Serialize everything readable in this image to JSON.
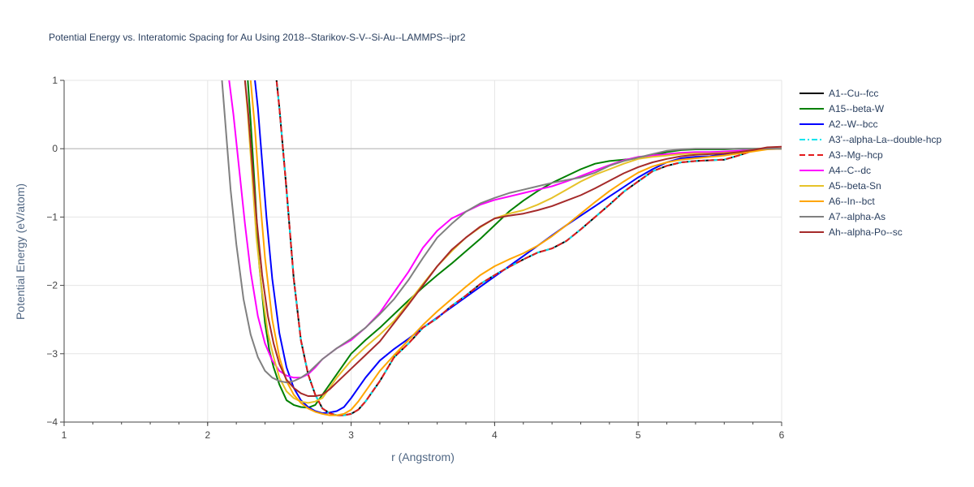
{
  "chart_data": {
    "type": "line",
    "title": "Potential Energy vs. Interatomic Spacing for Au Using 2018--Starikov-S-V--Si-Au--LAMMPS--ipr2",
    "xlabel": "r (Angstrom)",
    "ylabel": "Potential Energy (eV/atom)",
    "xlim": [
      1,
      6
    ],
    "ylim": [
      -4,
      1
    ],
    "xticks": [
      1,
      2,
      3,
      4,
      5,
      6
    ],
    "yticks": [
      1,
      0,
      -1,
      -2,
      -3,
      -4
    ],
    "ytick_labels": [
      "1",
      "0",
      "−1",
      "−2",
      "−3",
      "−4"
    ],
    "grid": true,
    "legend_position": "right",
    "series": [
      {
        "name": "A1--Cu--fcc",
        "color": "#000000",
        "dash": "solid",
        "x": [
          2.45,
          2.48,
          2.5,
          2.55,
          2.6,
          2.65,
          2.7,
          2.75,
          2.8,
          2.85,
          2.9,
          2.95,
          3.0,
          3.05,
          3.1,
          3.2,
          3.3,
          3.4,
          3.5,
          3.6,
          3.7,
          3.8,
          3.9,
          4.0,
          4.1,
          4.2,
          4.3,
          4.4,
          4.5,
          4.6,
          4.7,
          4.8,
          4.9,
          5.0,
          5.1,
          5.2,
          5.3,
          5.4,
          5.5,
          5.6,
          5.7,
          5.8,
          5.9,
          6.0
        ],
        "y": [
          1.5,
          1.0,
          0.6,
          -0.6,
          -1.9,
          -2.8,
          -3.3,
          -3.6,
          -3.8,
          -3.87,
          -3.9,
          -3.9,
          -3.88,
          -3.82,
          -3.7,
          -3.4,
          -3.05,
          -2.85,
          -2.62,
          -2.48,
          -2.3,
          -2.15,
          -1.98,
          -1.85,
          -1.73,
          -1.62,
          -1.52,
          -1.46,
          -1.35,
          -1.18,
          -1.0,
          -0.82,
          -0.63,
          -0.48,
          -0.33,
          -0.25,
          -0.2,
          -0.18,
          -0.17,
          -0.16,
          -0.1,
          -0.03,
          0.0,
          0.0
        ]
      },
      {
        "name": "A15--beta-W",
        "color": "#008000",
        "dash": "solid",
        "x": [
          2.28,
          2.3,
          2.33,
          2.36,
          2.4,
          2.43,
          2.46,
          2.5,
          2.55,
          2.6,
          2.65,
          2.7,
          2.75,
          2.8,
          2.9,
          3.0,
          3.1,
          3.2,
          3.3,
          3.4,
          3.5,
          3.6,
          3.7,
          3.8,
          3.9,
          4.0,
          4.1,
          4.2,
          4.3,
          4.4,
          4.5,
          4.6,
          4.7,
          4.8,
          4.9,
          5.0,
          5.1,
          5.2,
          5.3,
          5.4,
          5.5,
          5.6,
          5.7,
          5.8,
          5.9,
          6.0
        ],
        "y": [
          1.0,
          0.4,
          -0.6,
          -1.7,
          -2.55,
          -2.95,
          -3.2,
          -3.45,
          -3.68,
          -3.75,
          -3.78,
          -3.79,
          -3.75,
          -3.6,
          -3.3,
          -3.0,
          -2.8,
          -2.62,
          -2.42,
          -2.22,
          -2.03,
          -1.85,
          -1.68,
          -1.5,
          -1.32,
          -1.12,
          -0.92,
          -0.76,
          -0.62,
          -0.5,
          -0.4,
          -0.3,
          -0.22,
          -0.18,
          -0.16,
          -0.14,
          -0.1,
          -0.05,
          -0.02,
          -0.01,
          -0.01,
          -0.01,
          0.0,
          0.0,
          0.0,
          0.0
        ]
      },
      {
        "name": "A2--W--bcc",
        "color": "#0000ff",
        "dash": "solid",
        "x": [
          2.33,
          2.35,
          2.38,
          2.41,
          2.45,
          2.5,
          2.55,
          2.6,
          2.65,
          2.7,
          2.75,
          2.8,
          2.85,
          2.9,
          2.95,
          3.0,
          3.05,
          3.1,
          3.2,
          3.3,
          3.4,
          3.5,
          3.6,
          3.7,
          3.8,
          3.9,
          4.0,
          4.1,
          4.2,
          4.3,
          4.4,
          4.5,
          4.6,
          4.7,
          4.8,
          4.9,
          5.0,
          5.1,
          5.2,
          5.3,
          5.4,
          5.5,
          5.6,
          5.7,
          5.8,
          5.9,
          6.0
        ],
        "y": [
          1.0,
          0.6,
          -0.2,
          -1.0,
          -1.9,
          -2.7,
          -3.2,
          -3.5,
          -3.68,
          -3.78,
          -3.84,
          -3.87,
          -3.86,
          -3.84,
          -3.78,
          -3.65,
          -3.5,
          -3.35,
          -3.1,
          -2.93,
          -2.78,
          -2.62,
          -2.47,
          -2.32,
          -2.17,
          -2.02,
          -1.87,
          -1.72,
          -1.57,
          -1.42,
          -1.27,
          -1.12,
          -0.98,
          -0.84,
          -0.7,
          -0.56,
          -0.42,
          -0.3,
          -0.2,
          -0.14,
          -0.12,
          -0.11,
          -0.08,
          -0.05,
          -0.02,
          0.0,
          0.0
        ]
      },
      {
        "name": "A3'--alpha-La--double-hcp",
        "color": "#00e5ee",
        "dash": "dashdot",
        "x": [
          2.45,
          2.48,
          2.5,
          2.55,
          2.6,
          2.65,
          2.7,
          2.75,
          2.8,
          2.85,
          2.9,
          2.95,
          3.0,
          3.05,
          3.1,
          3.2,
          3.3,
          3.4,
          3.5,
          3.6,
          3.7,
          3.8,
          3.9,
          4.0,
          4.1,
          4.2,
          4.3,
          4.4,
          4.5,
          4.6,
          4.7,
          4.8,
          4.9,
          5.0,
          5.1,
          5.2,
          5.3,
          5.4,
          5.5,
          5.6,
          5.7,
          5.8,
          5.9,
          6.0
        ],
        "y": [
          1.5,
          1.0,
          0.6,
          -0.6,
          -1.9,
          -2.8,
          -3.3,
          -3.6,
          -3.8,
          -3.87,
          -3.9,
          -3.9,
          -3.88,
          -3.82,
          -3.7,
          -3.4,
          -3.05,
          -2.85,
          -2.62,
          -2.48,
          -2.3,
          -2.15,
          -1.98,
          -1.85,
          -1.73,
          -1.62,
          -1.52,
          -1.46,
          -1.35,
          -1.18,
          -1.0,
          -0.82,
          -0.63,
          -0.48,
          -0.33,
          -0.25,
          -0.2,
          -0.18,
          -0.17,
          -0.16,
          -0.1,
          -0.03,
          0.0,
          0.0
        ]
      },
      {
        "name": "A3--Mg--hcp",
        "color": "#e31a1c",
        "dash": "dash",
        "x": [
          2.45,
          2.48,
          2.5,
          2.55,
          2.6,
          2.65,
          2.7,
          2.75,
          2.8,
          2.85,
          2.9,
          2.95,
          3.0,
          3.05,
          3.1,
          3.2,
          3.3,
          3.4,
          3.5,
          3.6,
          3.7,
          3.8,
          3.9,
          4.0,
          4.1,
          4.2,
          4.3,
          4.4,
          4.5,
          4.6,
          4.7,
          4.8,
          4.9,
          5.0,
          5.1,
          5.2,
          5.3,
          5.4,
          5.5,
          5.6,
          5.7,
          5.8,
          5.9,
          6.0
        ],
        "y": [
          1.5,
          1.0,
          0.6,
          -0.6,
          -1.9,
          -2.8,
          -3.3,
          -3.6,
          -3.8,
          -3.87,
          -3.9,
          -3.9,
          -3.88,
          -3.82,
          -3.7,
          -3.4,
          -3.05,
          -2.85,
          -2.62,
          -2.48,
          -2.3,
          -2.15,
          -1.98,
          -1.85,
          -1.73,
          -1.62,
          -1.52,
          -1.46,
          -1.35,
          -1.18,
          -1.0,
          -0.82,
          -0.63,
          -0.48,
          -0.33,
          -0.25,
          -0.2,
          -0.18,
          -0.17,
          -0.16,
          -0.1,
          -0.03,
          0.0,
          0.0
        ]
      },
      {
        "name": "A4--C--dc",
        "color": "#ff00ff",
        "dash": "solid",
        "x": [
          2.15,
          2.18,
          2.22,
          2.26,
          2.3,
          2.35,
          2.4,
          2.45,
          2.5,
          2.55,
          2.6,
          2.65,
          2.7,
          2.75,
          2.8,
          2.9,
          3.0,
          3.1,
          3.2,
          3.3,
          3.4,
          3.5,
          3.6,
          3.7,
          3.8,
          3.9,
          4.0,
          4.1,
          4.2,
          4.3,
          4.4,
          4.5,
          4.6,
          4.7,
          4.8,
          4.9,
          5.0,
          5.1,
          5.2,
          5.3,
          5.4,
          5.5,
          5.6,
          5.7,
          5.8,
          5.9,
          6.0
        ],
        "y": [
          1.0,
          0.5,
          -0.3,
          -1.1,
          -1.8,
          -2.45,
          -2.85,
          -3.1,
          -3.25,
          -3.32,
          -3.35,
          -3.35,
          -3.3,
          -3.2,
          -3.08,
          -2.92,
          -2.8,
          -2.62,
          -2.4,
          -2.1,
          -1.8,
          -1.45,
          -1.2,
          -1.02,
          -0.92,
          -0.82,
          -0.75,
          -0.7,
          -0.65,
          -0.6,
          -0.55,
          -0.48,
          -0.4,
          -0.32,
          -0.24,
          -0.17,
          -0.12,
          -0.1,
          -0.08,
          -0.06,
          -0.05,
          -0.05,
          -0.04,
          -0.03,
          -0.02,
          0.0,
          0.0
        ]
      },
      {
        "name": "A5--beta-Sn",
        "color": "#e6c229",
        "dash": "solid",
        "x": [
          2.26,
          2.28,
          2.31,
          2.34,
          2.38,
          2.42,
          2.46,
          2.5,
          2.55,
          2.6,
          2.65,
          2.7,
          2.75,
          2.8,
          2.85,
          2.9,
          3.0,
          3.1,
          3.2,
          3.3,
          3.4,
          3.5,
          3.6,
          3.7,
          3.8,
          3.9,
          4.0,
          4.1,
          4.2,
          4.3,
          4.4,
          4.5,
          4.6,
          4.7,
          4.8,
          4.9,
          5.0,
          5.1,
          5.2,
          5.3,
          5.4,
          5.5,
          5.6,
          5.7,
          5.8,
          5.9,
          6.0
        ],
        "y": [
          1.0,
          0.5,
          -0.4,
          -1.3,
          -2.1,
          -2.7,
          -3.05,
          -3.35,
          -3.55,
          -3.65,
          -3.7,
          -3.72,
          -3.7,
          -3.65,
          -3.5,
          -3.35,
          -3.1,
          -2.9,
          -2.72,
          -2.52,
          -2.25,
          -1.98,
          -1.72,
          -1.5,
          -1.3,
          -1.15,
          -1.02,
          -0.95,
          -0.9,
          -0.82,
          -0.72,
          -0.6,
          -0.48,
          -0.38,
          -0.3,
          -0.22,
          -0.15,
          -0.12,
          -0.1,
          -0.08,
          -0.07,
          -0.07,
          -0.06,
          -0.05,
          -0.02,
          0.0,
          0.0
        ]
      },
      {
        "name": "A6--In--bct",
        "color": "#ffa500",
        "dash": "solid",
        "x": [
          2.3,
          2.33,
          2.36,
          2.4,
          2.45,
          2.5,
          2.55,
          2.6,
          2.65,
          2.7,
          2.75,
          2.8,
          2.85,
          2.9,
          2.95,
          3.0,
          3.05,
          3.1,
          3.2,
          3.3,
          3.4,
          3.5,
          3.6,
          3.7,
          3.8,
          3.9,
          4.0,
          4.1,
          4.2,
          4.3,
          4.4,
          4.5,
          4.6,
          4.7,
          4.8,
          4.9,
          5.0,
          5.1,
          5.2,
          5.3,
          5.4,
          5.5,
          5.6,
          5.7,
          5.8,
          5.9,
          6.0
        ],
        "y": [
          1.0,
          0.3,
          -0.6,
          -1.6,
          -2.5,
          -3.05,
          -3.4,
          -3.6,
          -3.72,
          -3.8,
          -3.85,
          -3.88,
          -3.9,
          -3.9,
          -3.88,
          -3.82,
          -3.7,
          -3.55,
          -3.25,
          -3.02,
          -2.8,
          -2.58,
          -2.38,
          -2.2,
          -2.02,
          -1.85,
          -1.72,
          -1.62,
          -1.53,
          -1.42,
          -1.28,
          -1.12,
          -0.95,
          -0.78,
          -0.62,
          -0.48,
          -0.35,
          -0.26,
          -0.2,
          -0.16,
          -0.14,
          -0.12,
          -0.1,
          -0.07,
          -0.04,
          -0.01,
          0.0
        ]
      },
      {
        "name": "A7--alpha-As",
        "color": "#808080",
        "dash": "solid",
        "x": [
          2.1,
          2.13,
          2.16,
          2.2,
          2.25,
          2.3,
          2.35,
          2.4,
          2.45,
          2.5,
          2.55,
          2.6,
          2.65,
          2.7,
          2.75,
          2.8,
          2.9,
          3.0,
          3.1,
          3.2,
          3.3,
          3.4,
          3.5,
          3.6,
          3.7,
          3.8,
          3.9,
          4.0,
          4.1,
          4.2,
          4.3,
          4.4,
          4.5,
          4.6,
          4.7,
          4.8,
          4.9,
          5.0,
          5.1,
          5.2,
          5.3,
          5.4,
          5.5,
          5.6,
          5.7,
          5.8,
          5.9,
          6.0
        ],
        "y": [
          1.0,
          0.2,
          -0.6,
          -1.4,
          -2.2,
          -2.72,
          -3.05,
          -3.25,
          -3.35,
          -3.4,
          -3.42,
          -3.4,
          -3.35,
          -3.28,
          -3.18,
          -3.08,
          -2.92,
          -2.78,
          -2.62,
          -2.42,
          -2.2,
          -1.92,
          -1.6,
          -1.3,
          -1.1,
          -0.92,
          -0.8,
          -0.72,
          -0.65,
          -0.6,
          -0.55,
          -0.5,
          -0.46,
          -0.42,
          -0.35,
          -0.25,
          -0.18,
          -0.13,
          -0.08,
          -0.03,
          -0.01,
          0.0,
          0.0,
          0.0,
          0.0,
          0.0,
          0.0,
          0.0
        ]
      },
      {
        "name": "Ah--alpha-Po--sc",
        "color": "#a52a2a",
        "dash": "solid",
        "x": [
          2.26,
          2.28,
          2.31,
          2.34,
          2.38,
          2.42,
          2.46,
          2.5,
          2.55,
          2.6,
          2.65,
          2.7,
          2.75,
          2.8,
          2.85,
          2.9,
          3.0,
          3.1,
          3.2,
          3.3,
          3.4,
          3.5,
          3.6,
          3.7,
          3.8,
          3.9,
          4.0,
          4.1,
          4.2,
          4.3,
          4.4,
          4.5,
          4.6,
          4.7,
          4.8,
          4.9,
          5.0,
          5.1,
          5.2,
          5.3,
          5.4,
          5.5,
          5.6,
          5.7,
          5.8,
          5.9,
          6.0
        ],
        "y": [
          1.0,
          0.6,
          -0.2,
          -1.0,
          -1.85,
          -2.45,
          -2.85,
          -3.15,
          -3.38,
          -3.5,
          -3.58,
          -3.62,
          -3.62,
          -3.6,
          -3.52,
          -3.42,
          -3.22,
          -3.02,
          -2.82,
          -2.55,
          -2.28,
          -2.0,
          -1.72,
          -1.48,
          -1.3,
          -1.14,
          -1.02,
          -0.98,
          -0.95,
          -0.9,
          -0.84,
          -0.76,
          -0.68,
          -0.58,
          -0.47,
          -0.36,
          -0.27,
          -0.2,
          -0.15,
          -0.11,
          -0.09,
          -0.08,
          -0.07,
          -0.05,
          -0.02,
          0.02,
          0.03
        ]
      }
    ]
  }
}
